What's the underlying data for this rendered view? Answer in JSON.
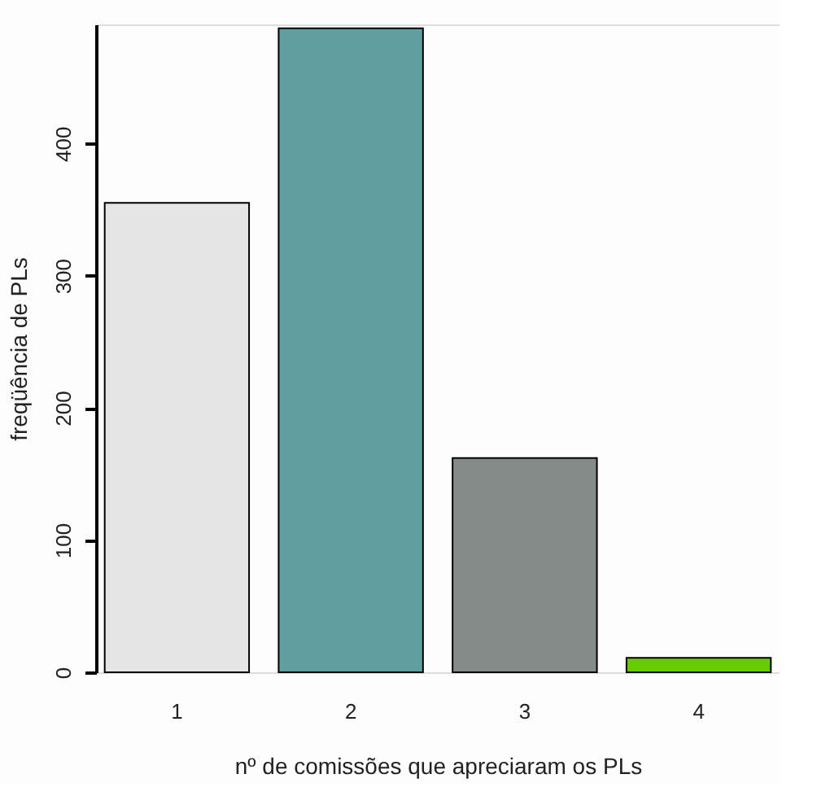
{
  "chart_data": {
    "type": "bar",
    "xlabel": "nº de comissões que apreciaram os PLs",
    "ylabel": "freqüência de PLs",
    "categories": [
      "1",
      "2",
      "3",
      "4"
    ],
    "values": [
      355,
      487,
      162,
      11
    ],
    "colors": [
      "#e5e5e5",
      "#619e9f",
      "#848b88",
      "#66cc00"
    ],
    "ylim": [
      0,
      490
    ],
    "yticks": [
      0,
      100,
      200,
      300,
      400
    ],
    "grid": false
  }
}
